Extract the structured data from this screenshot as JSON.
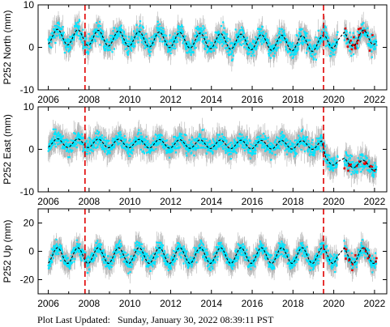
{
  "footer": {
    "label": "Plot Last Updated:",
    "timestamp": "Sunday, January 30, 2022 08:39:11 PST"
  },
  "colors": {
    "data": "#00e5ff",
    "errorbar": "#b4b4b4",
    "model": "#000000",
    "recent": "#e00000",
    "event_line": "#e00000"
  },
  "chart_data": [
    {
      "type": "scatter",
      "ylabel": "P252 North (mm)",
      "xlim": [
        2005.5,
        2022.6
      ],
      "ylim": [
        -10,
        10
      ],
      "yticks": [
        -10,
        0,
        10
      ],
      "xticks": [
        2006,
        2008,
        2010,
        2012,
        2014,
        2016,
        2018,
        2020,
        2022
      ],
      "event_lines": [
        2007.8,
        2019.5
      ],
      "series": [
        {
          "trend": [
            [
              2006.0,
              2.5
            ],
            [
              2019.4,
              0.8
            ],
            [
              2019.6,
              1.5
            ],
            [
              2022.1,
              2.5
            ]
          ],
          "seasonal_amplitude": 1.8,
          "scatter": 2.0,
          "errorbar": 2.0
        }
      ]
    },
    {
      "type": "scatter",
      "ylabel": "P252 East (mm)",
      "xlim": [
        2005.5,
        2022.6
      ],
      "ylim": [
        -10,
        10
      ],
      "yticks": [
        -10,
        0,
        10
      ],
      "xticks": [
        2006,
        2008,
        2010,
        2012,
        2014,
        2016,
        2018,
        2020,
        2022
      ],
      "event_lines": [
        2007.8,
        2019.5
      ],
      "series": [
        {
          "trend": [
            [
              2006.0,
              1.5
            ],
            [
              2019.4,
              1.0
            ],
            [
              2019.6,
              -2.5
            ],
            [
              2022.1,
              -4.0
            ]
          ],
          "seasonal_amplitude": 1.0,
          "scatter": 1.8,
          "errorbar": 2.2
        }
      ]
    },
    {
      "type": "scatter",
      "ylabel": "P252 Up (mm)",
      "xlim": [
        2005.5,
        2022.6
      ],
      "ylim": [
        -30,
        30
      ],
      "yticks": [
        -20,
        0,
        20
      ],
      "xticks": [
        2006,
        2008,
        2010,
        2012,
        2014,
        2016,
        2018,
        2020,
        2022
      ],
      "event_lines": [
        2007.8,
        2019.5
      ],
      "series": [
        {
          "trend": [
            [
              2006.0,
              -3.0
            ],
            [
              2022.1,
              -3.0
            ]
          ],
          "seasonal_amplitude": 5.5,
          "scatter": 5.0,
          "errorbar": 6.0
        }
      ]
    }
  ]
}
